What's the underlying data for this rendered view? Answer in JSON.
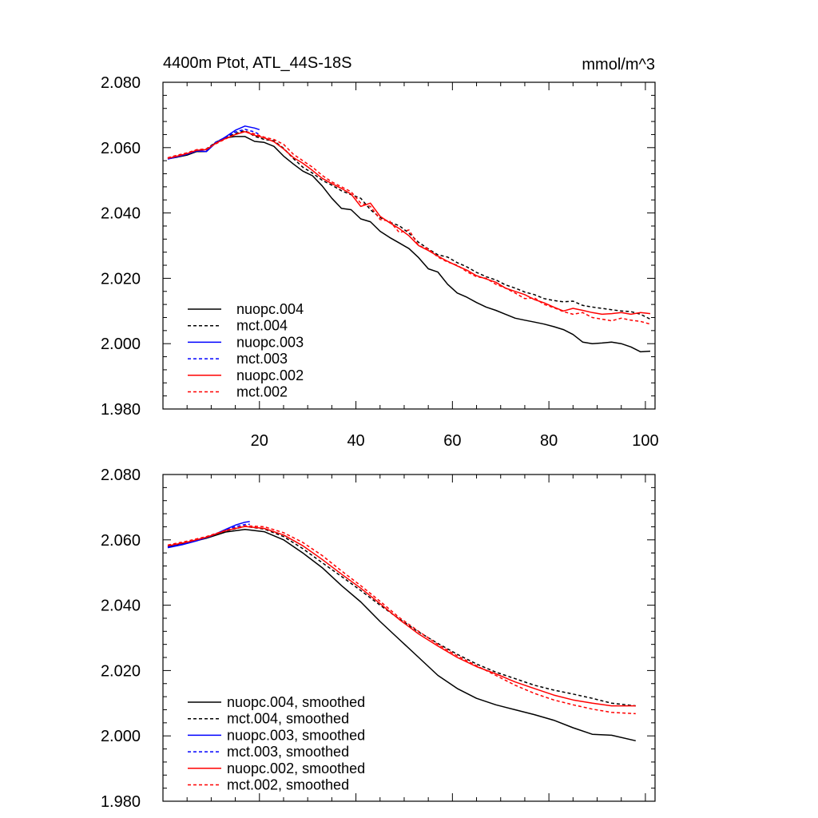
{
  "header": {
    "title": "4400m Ptot, ATL_44S-18S",
    "units": "mmol/m^3"
  },
  "colors": {
    "black": "#000000",
    "blue": "#0000ff",
    "red": "#ff0000"
  },
  "chart_data": [
    {
      "type": "line",
      "title": "4400m Ptot, ATL_44S-18S",
      "ylabel_right": "mmol/m^3",
      "xlim": [
        0,
        102
      ],
      "ylim": [
        1.98,
        2.08
      ],
      "yticks": [
        "2.080",
        "2.060",
        "2.040",
        "2.020",
        "2.000",
        "1.980"
      ],
      "xticks": [
        "20",
        "40",
        "60",
        "80",
        "100"
      ],
      "legend_position": "lower-left",
      "series": [
        {
          "name": "nuopc.004",
          "color": "#000000",
          "dash": "solid",
          "x": [
            1,
            3,
            5,
            7,
            9,
            11,
            13,
            15,
            17,
            19,
            21,
            23,
            25,
            27,
            29,
            31,
            33,
            35,
            37,
            39,
            41,
            43,
            45,
            47,
            49,
            51,
            53,
            55,
            57,
            59,
            61,
            63,
            65,
            67,
            69,
            71,
            73,
            75,
            77,
            79,
            81,
            83,
            85,
            87,
            89,
            91,
            93,
            95,
            97,
            99,
            101
          ],
          "y": [
            2.0566,
            2.0571,
            2.0577,
            2.0588,
            2.0588,
            2.0617,
            2.063,
            2.0634,
            2.0634,
            2.0619,
            2.0616,
            2.0604,
            2.0574,
            2.055,
            2.0528,
            2.0514,
            2.0483,
            2.0445,
            2.0414,
            2.041,
            2.0382,
            2.0373,
            2.0344,
            2.0325,
            2.0308,
            2.0291,
            2.0263,
            2.0229,
            2.0219,
            2.0182,
            2.0155,
            2.0142,
            2.0126,
            2.0112,
            2.0102,
            2.009,
            2.0078,
            2.0072,
            2.0066,
            2.006,
            2.0052,
            2.0043,
            2.0028,
            2.0005,
            2.0,
            2.0002,
            2.0005,
            2.0,
            1.999,
            1.9975,
            1.9977
          ]
        },
        {
          "name": "mct.004",
          "color": "#000000",
          "dash": "dashed",
          "x": [
            1,
            3,
            5,
            7,
            9,
            11,
            13,
            15,
            17,
            19,
            21,
            23,
            25,
            27,
            29,
            31,
            33,
            35,
            37,
            39,
            41,
            43,
            45,
            47,
            49,
            51,
            53,
            55,
            57,
            59,
            61,
            63,
            65,
            67,
            69,
            71,
            73,
            75,
            77,
            79,
            81,
            83,
            85,
            87,
            89,
            91,
            93,
            95,
            97,
            99,
            101
          ],
          "y": [
            2.0568,
            2.0575,
            2.0583,
            2.0591,
            2.0596,
            2.0617,
            2.063,
            2.0643,
            2.0652,
            2.0635,
            2.0625,
            2.0621,
            2.0598,
            2.0567,
            2.054,
            2.0522,
            2.05,
            2.0485,
            2.0468,
            2.0456,
            2.0445,
            2.041,
            2.0386,
            2.0372,
            2.0361,
            2.0338,
            2.031,
            2.029,
            2.0272,
            2.0265,
            2.0248,
            2.0235,
            2.0218,
            2.0205,
            2.0195,
            2.018,
            2.017,
            2.0158,
            2.015,
            2.0138,
            2.0132,
            2.0128,
            2.013,
            2.0117,
            2.0112,
            2.0108,
            2.0104,
            2.01,
            2.0098,
            2.009,
            2.0075
          ]
        },
        {
          "name": "nuopc.003",
          "color": "#0000ff",
          "dash": "solid",
          "x": [
            1,
            3,
            5,
            7,
            9,
            11,
            13,
            15,
            17,
            19,
            20
          ],
          "y": [
            2.0565,
            2.0572,
            2.058,
            2.059,
            2.0588,
            2.0615,
            2.0633,
            2.0653,
            2.0666,
            2.066,
            2.0655
          ]
        },
        {
          "name": "mct.003",
          "color": "#0000ff",
          "dash": "dashed",
          "x": [
            1,
            3,
            5,
            7,
            9,
            11,
            13,
            15,
            17,
            19,
            20
          ],
          "y": [
            2.0568,
            2.0574,
            2.0582,
            2.0592,
            2.0593,
            2.0617,
            2.0632,
            2.0648,
            2.0656,
            2.0648,
            2.064
          ]
        },
        {
          "name": "nuopc.002",
          "color": "#ff0000",
          "dash": "solid",
          "x": [
            1,
            3,
            5,
            7,
            9,
            11,
            13,
            15,
            17,
            19,
            21,
            23,
            25,
            27,
            29,
            31,
            33,
            35,
            37,
            39,
            41,
            43,
            45,
            47,
            49,
            51,
            53,
            55,
            57,
            59,
            61,
            63,
            65,
            67,
            69,
            71,
            73,
            75,
            77,
            79,
            81,
            83,
            85,
            87,
            89,
            91,
            93,
            95,
            97,
            99,
            101
          ],
          "y": [
            2.0567,
            2.0574,
            2.0582,
            2.0592,
            2.0594,
            2.0614,
            2.0628,
            2.064,
            2.0649,
            2.0638,
            2.063,
            2.0618,
            2.0596,
            2.057,
            2.0552,
            2.053,
            2.0506,
            2.049,
            2.0475,
            2.0458,
            2.042,
            2.043,
            2.039,
            2.037,
            2.0352,
            2.033,
            2.03,
            2.0285,
            2.0268,
            2.0252,
            2.0238,
            2.0225,
            2.0208,
            2.0198,
            2.0188,
            2.017,
            2.016,
            2.015,
            2.0135,
            2.0125,
            2.0112,
            2.01,
            2.0108,
            2.0102,
            2.0095,
            2.009,
            2.0092,
            2.0095,
            2.009,
            2.0095,
            2.0092
          ]
        },
        {
          "name": "mct.002",
          "color": "#ff0000",
          "dash": "dashed",
          "x": [
            1,
            3,
            5,
            7,
            9,
            11,
            13,
            15,
            17,
            19,
            21,
            23,
            25,
            27,
            29,
            31,
            33,
            35,
            37,
            39,
            41,
            43,
            45,
            47,
            49,
            51,
            53,
            55,
            57,
            59,
            61,
            63,
            65,
            67,
            69,
            71,
            73,
            75,
            77,
            79,
            81,
            83,
            85,
            87,
            89,
            91,
            93,
            95,
            97,
            99,
            101
          ],
          "y": [
            2.0569,
            2.0577,
            2.0584,
            2.0594,
            2.0596,
            2.0612,
            2.0627,
            2.064,
            2.065,
            2.0642,
            2.0632,
            2.0625,
            2.061,
            2.058,
            2.056,
            2.054,
            2.0515,
            2.0495,
            2.048,
            2.0465,
            2.043,
            2.042,
            2.038,
            2.0375,
            2.034,
            2.0348,
            2.03,
            2.029,
            2.0265,
            2.025,
            2.024,
            2.022,
            2.0205,
            2.02,
            2.0182,
            2.017,
            2.0155,
            2.0138,
            2.014,
            2.012,
            2.011,
            2.0098,
            2.009,
            2.0095,
            2.008,
            2.0075,
            2.007,
            2.0078,
            2.0072,
            2.0068,
            2.006
          ]
        }
      ]
    },
    {
      "type": "line",
      "xlim": [
        0,
        102
      ],
      "ylim": [
        1.98,
        2.08
      ],
      "yticks": [
        "2.080",
        "2.060",
        "2.040",
        "2.020",
        "2.000",
        "1.980"
      ],
      "legend_position": "lower-left",
      "series": [
        {
          "name": "nuopc.004, smoothed",
          "color": "#000000",
          "dash": "solid",
          "x": [
            1,
            5,
            9,
            13,
            17,
            21,
            25,
            29,
            33,
            37,
            41,
            45,
            49,
            53,
            57,
            61,
            65,
            69,
            73,
            77,
            81,
            85,
            89,
            93,
            98
          ],
          "y": [
            2.0578,
            2.059,
            2.0605,
            2.0624,
            2.0632,
            2.0625,
            2.06,
            2.056,
            2.0515,
            2.046,
            2.041,
            2.035,
            2.0295,
            2.024,
            2.0185,
            2.0145,
            2.0115,
            2.0095,
            2.008,
            2.0065,
            2.0048,
            2.0025,
            2.0005,
            2.0002,
            1.9985
          ]
        },
        {
          "name": "mct.004, smoothed",
          "color": "#000000",
          "dash": "dashed",
          "x": [
            1,
            5,
            9,
            13,
            17,
            21,
            25,
            29,
            33,
            37,
            41,
            45,
            49,
            53,
            57,
            61,
            65,
            69,
            73,
            77,
            81,
            85,
            89,
            93,
            98
          ],
          "y": [
            2.058,
            2.0592,
            2.0607,
            2.0627,
            2.0641,
            2.0633,
            2.061,
            2.0573,
            2.053,
            2.0488,
            2.0445,
            2.04,
            2.0358,
            2.0318,
            2.0283,
            2.025,
            2.022,
            2.0195,
            2.0175,
            2.0155,
            2.014,
            2.0128,
            2.0115,
            2.01,
            2.0092
          ]
        },
        {
          "name": "nuopc.003, smoothed",
          "color": "#0000ff",
          "dash": "solid",
          "x": [
            1,
            4,
            7,
            10,
            13,
            15,
            17,
            18
          ],
          "y": [
            2.0576,
            2.0585,
            2.0597,
            2.0612,
            2.0632,
            2.0645,
            2.0654,
            2.0656
          ]
        },
        {
          "name": "mct.003, smoothed",
          "color": "#0000ff",
          "dash": "dashed",
          "x": [
            1,
            4,
            7,
            10,
            13,
            15,
            17,
            18
          ],
          "y": [
            2.0578,
            2.0587,
            2.0599,
            2.0613,
            2.063,
            2.064,
            2.0647,
            2.0648
          ]
        },
        {
          "name": "nuopc.002, smoothed",
          "color": "#ff0000",
          "dash": "solid",
          "x": [
            1,
            5,
            9,
            13,
            17,
            21,
            25,
            29,
            33,
            37,
            41,
            45,
            49,
            53,
            57,
            61,
            65,
            69,
            73,
            77,
            81,
            85,
            89,
            93,
            98
          ],
          "y": [
            2.0582,
            2.0593,
            2.0608,
            2.0628,
            2.0641,
            2.0635,
            2.0615,
            2.0582,
            2.054,
            2.0495,
            2.0452,
            2.0405,
            2.0356,
            2.0312,
            2.0275,
            2.024,
            2.0212,
            2.019,
            2.0165,
            2.0145,
            2.0125,
            2.011,
            2.01,
            2.0092,
            2.0092
          ]
        },
        {
          "name": "mct.002, smoothed",
          "color": "#ff0000",
          "dash": "dashed",
          "x": [
            1,
            5,
            9,
            13,
            17,
            21,
            25,
            29,
            33,
            37,
            41,
            45,
            49,
            53,
            57,
            61,
            65,
            69,
            73,
            77,
            81,
            85,
            89,
            93,
            98
          ],
          "y": [
            2.0584,
            2.0596,
            2.061,
            2.0629,
            2.0643,
            2.064,
            2.0622,
            2.0592,
            2.0552,
            2.0505,
            2.046,
            2.0412,
            2.0362,
            2.032,
            2.028,
            2.0245,
            2.0215,
            2.0185,
            2.0155,
            2.013,
            2.011,
            2.0095,
            2.0082,
            2.0072,
            2.0068
          ]
        }
      ]
    }
  ]
}
